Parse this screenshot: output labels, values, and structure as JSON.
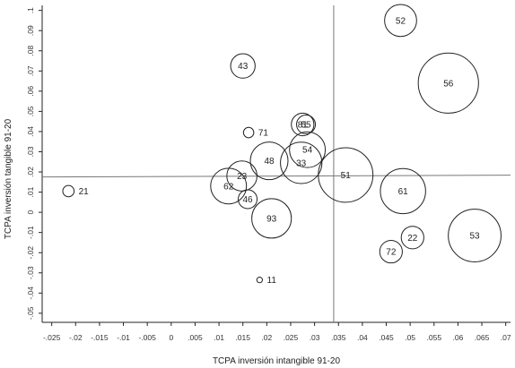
{
  "chart_data": {
    "type": "scatter",
    "title": "",
    "xlabel": "TCPA inversión intangible 91-20",
    "ylabel": "TCPA inversión tangible 91-20",
    "xlim": [
      -0.027,
      0.071
    ],
    "ylim": [
      -0.0545,
      0.1025
    ],
    "xticks": [
      -0.025,
      -0.02,
      -0.015,
      -0.01,
      -0.005,
      0,
      0.005,
      0.01,
      0.015,
      0.02,
      0.025,
      0.03,
      0.035,
      0.04,
      0.045,
      0.05,
      0.055,
      0.06,
      0.065,
      0.07
    ],
    "xtick_labels": [
      "-.025",
      "-.02",
      "-.015",
      "-.01",
      "-.005",
      "0",
      ".005",
      ".01",
      ".015",
      ".02",
      ".025",
      ".03",
      ".035",
      ".04",
      ".045",
      ".05",
      ".055",
      ".06",
      ".065",
      ".07"
    ],
    "yticks": [
      -0.05,
      -0.04,
      -0.03,
      -0.02,
      -0.01,
      0,
      0.01,
      0.02,
      0.03,
      0.04,
      0.05,
      0.06,
      0.07,
      0.08,
      0.09,
      0.1
    ],
    "ytick_labels": [
      "-.05",
      "-.04",
      "-.03",
      "-.02",
      "-.01",
      "0",
      ".01",
      ".02",
      ".03",
      ".04",
      ".05",
      ".06",
      ".07",
      ".08",
      ".09",
      ".1"
    ],
    "reference_lines": {
      "x": 0.034,
      "y": 0.0175
    },
    "grid": false,
    "points": [
      {
        "label": "21",
        "x": -0.0215,
        "y": 0.0105,
        "r": 0.6
      },
      {
        "label": "43",
        "x": 0.015,
        "y": 0.0725,
        "r": 1.3
      },
      {
        "label": "71",
        "x": 0.0162,
        "y": 0.0395,
        "r": 0.55
      },
      {
        "label": "81",
        "x": 0.0275,
        "y": 0.0435,
        "r": 1.2
      },
      {
        "label": "55",
        "x": 0.0282,
        "y": 0.0435,
        "r": 1.0
      },
      {
        "label": "54",
        "x": 0.0285,
        "y": 0.031,
        "r": 1.9
      },
      {
        "label": "48",
        "x": 0.0205,
        "y": 0.0255,
        "r": 2.0
      },
      {
        "label": "33",
        "x": 0.0272,
        "y": 0.0245,
        "r": 2.2
      },
      {
        "label": "51",
        "x": 0.0365,
        "y": 0.0185,
        "r": 2.9
      },
      {
        "label": "23",
        "x": 0.0148,
        "y": 0.018,
        "r": 1.6
      },
      {
        "label": "62",
        "x": 0.012,
        "y": 0.013,
        "r": 1.9
      },
      {
        "label": "46",
        "x": 0.016,
        "y": 0.0065,
        "r": 1.0
      },
      {
        "label": "93",
        "x": 0.021,
        "y": -0.003,
        "r": 2.1
      },
      {
        "label": "11",
        "x": 0.0185,
        "y": -0.0335,
        "r": 0.3
      },
      {
        "label": "52",
        "x": 0.048,
        "y": 0.095,
        "r": 1.7
      },
      {
        "label": "56",
        "x": 0.058,
        "y": 0.064,
        "r": 3.2
      },
      {
        "label": "61",
        "x": 0.0485,
        "y": 0.0105,
        "r": 2.4
      },
      {
        "label": "72",
        "x": 0.046,
        "y": -0.0195,
        "r": 1.2
      },
      {
        "label": "22",
        "x": 0.0505,
        "y": -0.0125,
        "r": 1.2
      },
      {
        "label": "53",
        "x": 0.0635,
        "y": -0.0115,
        "r": 2.8
      }
    ]
  }
}
